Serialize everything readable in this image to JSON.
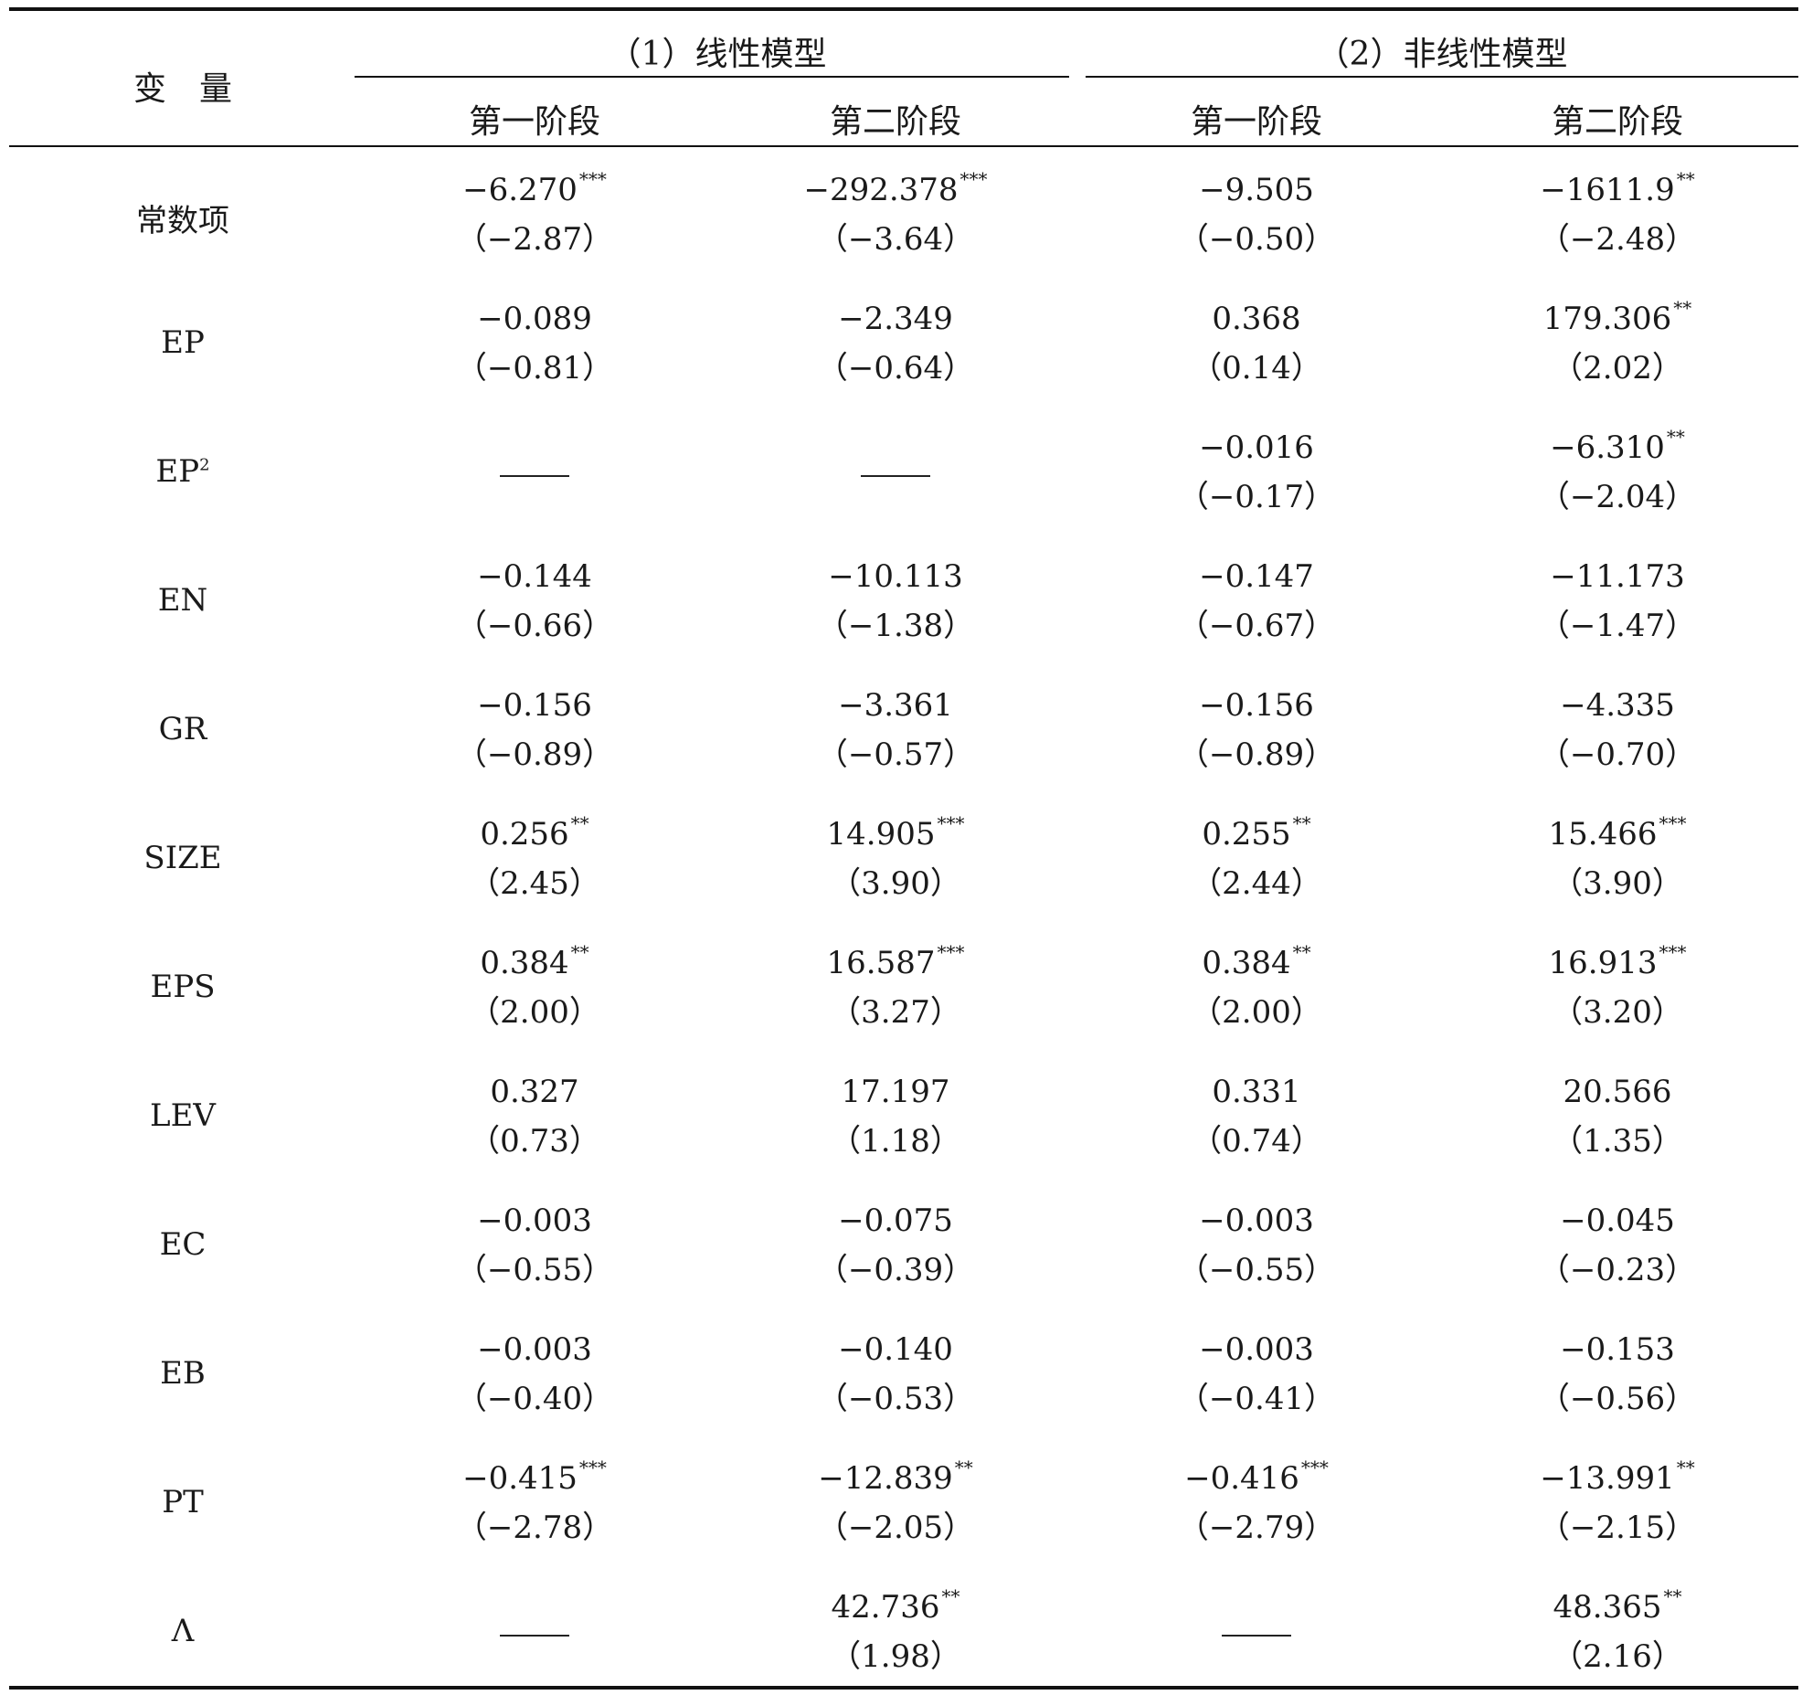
{
  "header": {
    "variable_label": "变　量",
    "group1": "（1）线性模型",
    "group2": "（2）非线性模型",
    "stages": [
      "第一阶段",
      "第二阶段",
      "第一阶段",
      "第二阶段"
    ]
  },
  "rows": [
    {
      "label": "常数项",
      "label_sup": "",
      "cells": [
        {
          "coef": "−6.270",
          "stars": "***",
          "t": "（−2.87）"
        },
        {
          "coef": "−292.378",
          "stars": "***",
          "t": "（−3.64）"
        },
        {
          "coef": "−9.505",
          "stars": "",
          "t": "（−0.50）"
        },
        {
          "coef": "−1611.9",
          "stars": "**",
          "t": "（−2.48）"
        }
      ]
    },
    {
      "label": "EP",
      "label_sup": "",
      "cells": [
        {
          "coef": "−0.089",
          "stars": "",
          "t": "（−0.81）"
        },
        {
          "coef": "−2.349",
          "stars": "",
          "t": "（−0.64）"
        },
        {
          "coef": "0.368",
          "stars": "",
          "t": "（0.14）"
        },
        {
          "coef": "179.306",
          "stars": "**",
          "t": "（2.02）"
        }
      ]
    },
    {
      "label": "EP",
      "label_sup": "2",
      "cells": [
        {
          "dash": "——"
        },
        {
          "dash": "——"
        },
        {
          "coef": "−0.016",
          "stars": "",
          "t": "（−0.17）"
        },
        {
          "coef": "−6.310",
          "stars": "**",
          "t": "（−2.04）"
        }
      ]
    },
    {
      "label": "EN",
      "label_sup": "",
      "cells": [
        {
          "coef": "−0.144",
          "stars": "",
          "t": "（−0.66）"
        },
        {
          "coef": "−10.113",
          "stars": "",
          "t": "（−1.38）"
        },
        {
          "coef": "−0.147",
          "stars": "",
          "t": "（−0.67）"
        },
        {
          "coef": "−11.173",
          "stars": "",
          "t": "（−1.47）"
        }
      ]
    },
    {
      "label": "GR",
      "label_sup": "",
      "cells": [
        {
          "coef": "−0.156",
          "stars": "",
          "t": "（−0.89）"
        },
        {
          "coef": "−3.361",
          "stars": "",
          "t": "（−0.57）"
        },
        {
          "coef": "−0.156",
          "stars": "",
          "t": "（−0.89）"
        },
        {
          "coef": "−4.335",
          "stars": "",
          "t": "（−0.70）"
        }
      ]
    },
    {
      "label": "SIZE",
      "label_sup": "",
      "cells": [
        {
          "coef": "0.256",
          "stars": "**",
          "t": "（2.45）"
        },
        {
          "coef": "14.905",
          "stars": "***",
          "t": "（3.90）"
        },
        {
          "coef": "0.255",
          "stars": "**",
          "t": "（2.44）"
        },
        {
          "coef": "15.466",
          "stars": "***",
          "t": "（3.90）"
        }
      ]
    },
    {
      "label": "EPS",
      "label_sup": "",
      "cells": [
        {
          "coef": "0.384",
          "stars": "**",
          "t": "（2.00）"
        },
        {
          "coef": "16.587",
          "stars": "***",
          "t": "（3.27）"
        },
        {
          "coef": "0.384",
          "stars": "**",
          "t": "（2.00）"
        },
        {
          "coef": "16.913",
          "stars": "***",
          "t": "（3.20）"
        }
      ]
    },
    {
      "label": "LEV",
      "label_sup": "",
      "cells": [
        {
          "coef": "0.327",
          "stars": "",
          "t": "（0.73）"
        },
        {
          "coef": "17.197",
          "stars": "",
          "t": "（1.18）"
        },
        {
          "coef": "0.331",
          "stars": "",
          "t": "（0.74）"
        },
        {
          "coef": "20.566",
          "stars": "",
          "t": "（1.35）"
        }
      ]
    },
    {
      "label": "EC",
      "label_sup": "",
      "cells": [
        {
          "coef": "−0.003",
          "stars": "",
          "t": "（−0.55）"
        },
        {
          "coef": "−0.075",
          "stars": "",
          "t": "（−0.39）"
        },
        {
          "coef": "−0.003",
          "stars": "",
          "t": "（−0.55）"
        },
        {
          "coef": "−0.045",
          "stars": "",
          "t": "（−0.23）"
        }
      ]
    },
    {
      "label": "EB",
      "label_sup": "",
      "cells": [
        {
          "coef": "−0.003",
          "stars": "",
          "t": "（−0.40）"
        },
        {
          "coef": "−0.140",
          "stars": "",
          "t": "（−0.53）"
        },
        {
          "coef": "−0.003",
          "stars": "",
          "t": "（−0.41）"
        },
        {
          "coef": "−0.153",
          "stars": "",
          "t": "（−0.56）"
        }
      ]
    },
    {
      "label": "PT",
      "label_sup": "",
      "cells": [
        {
          "coef": "−0.415",
          "stars": "***",
          "t": "（−2.78）"
        },
        {
          "coef": "−12.839",
          "stars": "**",
          "t": "（−2.05）"
        },
        {
          "coef": "−0.416",
          "stars": "***",
          "t": "（−2.79）"
        },
        {
          "coef": "−13.991",
          "stars": "**",
          "t": "（−2.15）"
        }
      ]
    },
    {
      "label": "Λ",
      "label_sup": "",
      "cells": [
        {
          "dash": "——"
        },
        {
          "coef": "42.736",
          "stars": "**",
          "t": "（1.98）"
        },
        {
          "dash": "——"
        },
        {
          "coef": "48.365",
          "stars": "**",
          "t": "（2.16）"
        }
      ]
    }
  ]
}
